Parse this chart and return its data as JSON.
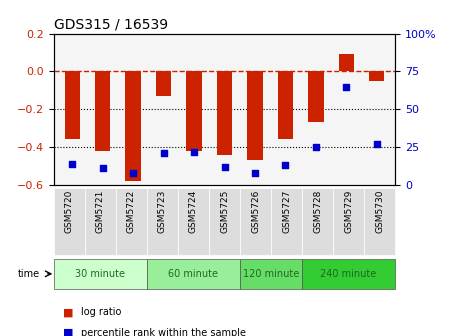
{
  "title": "GDS315 / 16539",
  "samples": [
    "GSM5720",
    "GSM5721",
    "GSM5722",
    "GSM5723",
    "GSM5724",
    "GSM5725",
    "GSM5726",
    "GSM5727",
    "GSM5728",
    "GSM5729",
    "GSM5730"
  ],
  "log_ratio": [
    -0.36,
    -0.42,
    -0.58,
    -0.13,
    -0.42,
    -0.44,
    -0.47,
    -0.36,
    -0.27,
    0.09,
    -0.05
  ],
  "percentile_rank": [
    14,
    11,
    8,
    21,
    22,
    12,
    8,
    13,
    25,
    65,
    27
  ],
  "bar_color": "#cc2200",
  "dot_color": "#0000cc",
  "ylim_left": [
    -0.6,
    0.2
  ],
  "ylim_right": [
    0,
    100
  ],
  "yticks_left": [
    -0.6,
    -0.4,
    -0.2,
    0.0,
    0.2
  ],
  "yticks_right": [
    0,
    25,
    50,
    75,
    100
  ],
  "ytick_labels_right": [
    "0",
    "25",
    "50",
    "75",
    "100%"
  ],
  "hline_y": 0.0,
  "dotted_lines": [
    -0.2,
    -0.4
  ],
  "groups": [
    {
      "label": "30 minute",
      "start": 0,
      "end": 3,
      "color": "#ccffcc"
    },
    {
      "label": "60 minute",
      "start": 3,
      "end": 6,
      "color": "#99ee99"
    },
    {
      "label": "120 minute",
      "start": 6,
      "end": 8,
      "color": "#66dd66"
    },
    {
      "label": "240 minute",
      "start": 8,
      "end": 11,
      "color": "#33cc33"
    }
  ],
  "time_label": "time",
  "legend_bar_label": "log ratio",
  "legend_dot_label": "percentile rank within the sample",
  "bg_color": "#ffffff",
  "plot_bg_color": "#f5f5f5",
  "bar_width": 0.5
}
